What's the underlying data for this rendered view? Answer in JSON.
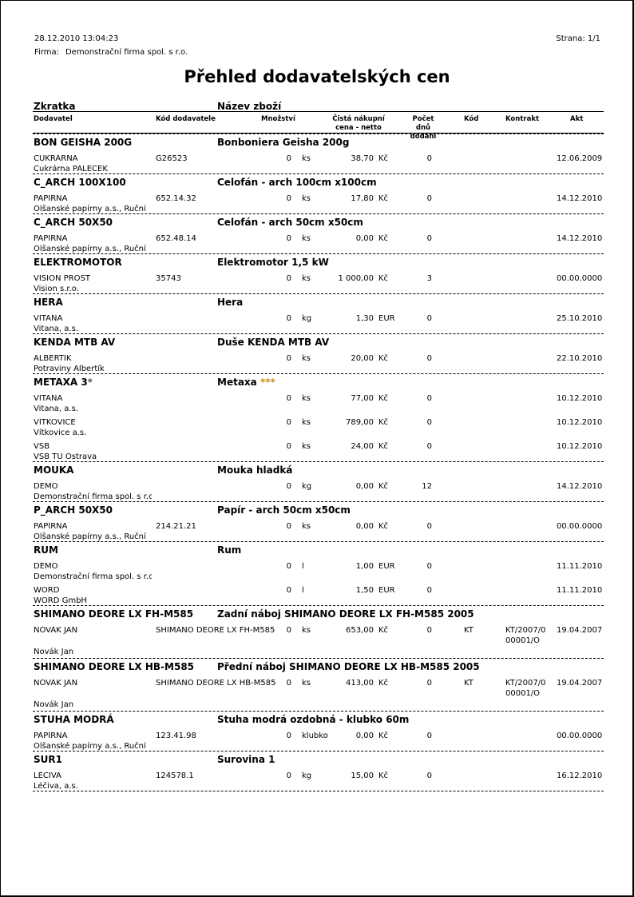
{
  "header": {
    "datetime": "28.12.2010  13:04:23",
    "firma_label": "Firma:",
    "firma_value": "Demonstrační firma spol. s r.o.",
    "page": "Strana: 1/1",
    "title": "Přehled dodavatelských cen"
  },
  "columns": {
    "zkratka": "Zkratka",
    "nazev": "Název zboží",
    "dodavatel": "Dodavatel",
    "kod_dod": "Kód dodavatele",
    "mnozstvi": "Množství",
    "cena": "Čistá nákupní cena - netto",
    "dny": "Počet dnů dodání",
    "kod": "Kód",
    "kontrakt": "Kontrakt",
    "akt": "Akt"
  },
  "groups": [
    {
      "code": "BON GEISHA 200G",
      "name": "Bonboniera Geisha 200g",
      "rows": [
        {
          "sup": "CUKRÁRNA",
          "supname": "Cukrárna PALEČEK",
          "kod": "G26523",
          "qty": "0",
          "unit": "ks",
          "price": "38,70",
          "cur": "Kč",
          "days": "0",
          "akt": "12.06.2009"
        }
      ]
    },
    {
      "code": "C_ARCH 100X100",
      "name": "Celofán - arch 100cm x100cm",
      "rows": [
        {
          "sup": "PAPÍRNA",
          "supname": "Olšanské papírny a.s., Ruční",
          "kod": "652.14.32",
          "qty": "0",
          "unit": "ks",
          "price": "17,80",
          "cur": "Kč",
          "days": "0",
          "akt": "14.12.2010"
        }
      ]
    },
    {
      "code": "C_ARCH 50X50",
      "name": "Celofán - arch 50cm x50cm",
      "rows": [
        {
          "sup": "PAPÍRNA",
          "supname": "Olšanské papírny a.s., Ruční",
          "kod": "652.48.14",
          "qty": "0",
          "unit": "ks",
          "price": "0,00",
          "cur": "Kč",
          "days": "0",
          "akt": "14.12.2010"
        }
      ]
    },
    {
      "code": "ELEKTROMOTOR",
      "name": "Elektromotor 1,5 kW",
      "rows": [
        {
          "sup": "VISION PROST",
          "supname": "Vision s.r.o.",
          "kod": "35743",
          "qty": "0",
          "unit": "ks",
          "price": "1 000,00",
          "cur": "Kč",
          "days": "3",
          "akt": "00.00.0000"
        }
      ]
    },
    {
      "code": "HERA",
      "name": "Hera",
      "rows": [
        {
          "sup": "VITANA",
          "supname": "Vitana, a.s.",
          "kod": "",
          "qty": "0",
          "unit": "kg",
          "price": "1,30",
          "cur": "EUR",
          "days": "0",
          "akt": "25.10.2010"
        }
      ]
    },
    {
      "code": "KENDA MTB AV",
      "name": "Duše KENDA MTB AV",
      "rows": [
        {
          "sup": "ALBERTÍK",
          "supname": "Potraviny Albertík",
          "kod": "",
          "qty": "0",
          "unit": "ks",
          "price": "20,00",
          "cur": "Kč",
          "days": "0",
          "akt": "22.10.2010"
        }
      ]
    },
    {
      "code": "METAXA 3",
      "code_star": "*",
      "name": "Metaxa",
      "name_star": "***",
      "rows": [
        {
          "sup": "VITANA",
          "supname": "Vitana, a.s.",
          "kod": "",
          "qty": "0",
          "unit": "ks",
          "price": "77,00",
          "cur": "Kč",
          "days": "0",
          "akt": "10.12.2010"
        },
        {
          "sup": "VÍTKOVICE",
          "supname": "Vítkovice a.s.",
          "kod": "",
          "qty": "0",
          "unit": "ks",
          "price": "789,00",
          "cur": "Kč",
          "days": "0",
          "akt": "10.12.2010"
        },
        {
          "sup": "VŠB",
          "supname": "VŠB TU Ostrava",
          "kod": "",
          "qty": "0",
          "unit": "ks",
          "price": "24,00",
          "cur": "Kč",
          "days": "0",
          "akt": "10.12.2010"
        }
      ]
    },
    {
      "code": "MOUKA",
      "name": "Mouka hladká",
      "rows": [
        {
          "sup": "DEMO",
          "supname": "Demonstrační firma spol. s r.o.",
          "kod": "",
          "qty": "0",
          "unit": "kg",
          "price": "0,00",
          "cur": "Kč",
          "days": "12",
          "akt": "14.12.2010"
        }
      ]
    },
    {
      "code": "P_ARCH 50X50",
      "name": "Papír - arch 50cm x50cm",
      "rows": [
        {
          "sup": "PAPÍRNA",
          "supname": "Olšanské papírny a.s., Ruční",
          "kod": "214.21.21",
          "qty": "0",
          "unit": "ks",
          "price": "0,00",
          "cur": "Kč",
          "days": "0",
          "akt": "00.00.0000"
        }
      ]
    },
    {
      "code": "RUM",
      "name": "Rum",
      "rows": [
        {
          "sup": "DEMO",
          "supname": "Demonstrační firma spol. s r.o.",
          "kod": "",
          "qty": "0",
          "unit": "l",
          "price": "1,00",
          "cur": "EUR",
          "days": "0",
          "akt": "11.11.2010"
        },
        {
          "sup": "WORD",
          "supname": "WORD GmbH",
          "kod": "",
          "qty": "0",
          "unit": "l",
          "price": "1,50",
          "cur": "EUR",
          "days": "0",
          "akt": "11.11.2010"
        }
      ]
    },
    {
      "code": "SHIMANO DEORE LX FH-M585",
      "name": "Zadní náboj SHIMANO DEORE LX FH-M585 2005",
      "rows": [
        {
          "sup": "NOVÁK JAN",
          "supname": "Novák Jan",
          "kod": "SHIMANO DEORE LX FH-M585",
          "qty": "0",
          "unit": "ks",
          "price": "653,00",
          "cur": "Kč",
          "days": "0",
          "kodx": "KT",
          "kontrakt1": "KT/2007/0",
          "kontrakt2": "00001/O",
          "akt": "19.04.2007"
        }
      ]
    },
    {
      "code": "SHIMANO DEORE LX HB-M585",
      "name": "Přední náboj SHIMANO DEORE LX HB-M585 2005",
      "rows": [
        {
          "sup": "NOVÁK JAN",
          "supname": "Novák Jan",
          "kod": "SHIMANO DEORE LX HB-M585",
          "qty": "0",
          "unit": "ks",
          "price": "413,00",
          "cur": "Kč",
          "days": "0",
          "kodx": "KT",
          "kontrakt1": "KT/2007/0",
          "kontrakt2": "00001/O",
          "akt": "19.04.2007"
        }
      ]
    },
    {
      "code": "STUHA MODRÁ",
      "name": "Stuha modrá ozdobná  - klubko 60m",
      "rows": [
        {
          "sup": "PAPÍRNA",
          "supname": "Olšanské papírny a.s., Ruční",
          "kod": "123.41.98",
          "qty": "0",
          "unit": "klubko",
          "price": "0,00",
          "cur": "Kč",
          "days": "0",
          "akt": "00.00.0000"
        }
      ]
    },
    {
      "code": "SUR1",
      "name": "Surovina 1",
      "rows": [
        {
          "sup": "LÉČIVA",
          "supname": "Léčiva, a.s.",
          "kod": "124578.1",
          "qty": "0",
          "unit": "kg",
          "price": "15,00",
          "cur": "Kč",
          "days": "0",
          "akt": "16.12.2010"
        }
      ]
    }
  ]
}
